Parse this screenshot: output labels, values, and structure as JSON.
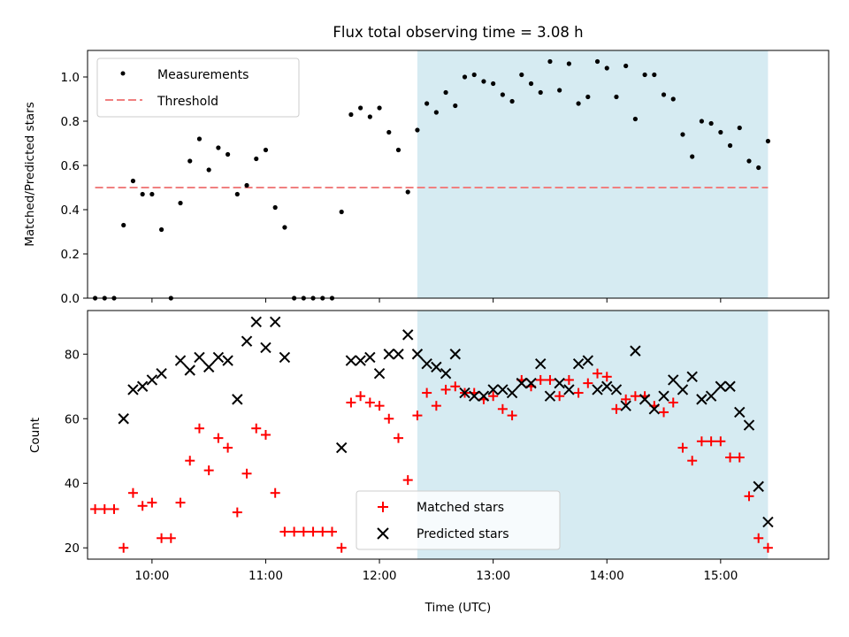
{
  "chart_data": [
    {
      "type": "scatter",
      "title": "Flux total observing time = 3.08 h",
      "ylabel": "Matched/Predicted stars",
      "xlabel": "",
      "xlim": [
        "09:26",
        "15:57"
      ],
      "ylim": [
        0,
        1.12
      ],
      "yticks": [
        "0.0",
        "0.2",
        "0.4",
        "0.6",
        "0.8",
        "1.0"
      ],
      "legend_position": "top-left",
      "shaded_interval": {
        "x": [
          "12:20",
          "15:25"
        ],
        "color": "#add8e6"
      },
      "threshold": {
        "name": "Threshold",
        "y": 0.5,
        "x": [
          "09:30",
          "15:25"
        ],
        "color": "#f08080",
        "style": "dashed"
      },
      "series": [
        {
          "name": "Measurements",
          "color": "#000000",
          "marker": "dot",
          "points": [
            [
              "09:30",
              0.0
            ],
            [
              "09:35",
              0.0
            ],
            [
              "09:40",
              0.0
            ],
            [
              "09:45",
              0.33
            ],
            [
              "09:50",
              0.53
            ],
            [
              "09:55",
              0.47
            ],
            [
              "10:00",
              0.47
            ],
            [
              "10:05",
              0.31
            ],
            [
              "10:10",
              0.0
            ],
            [
              "10:15",
              0.43
            ],
            [
              "10:20",
              0.62
            ],
            [
              "10:25",
              0.72
            ],
            [
              "10:30",
              0.58
            ],
            [
              "10:35",
              0.68
            ],
            [
              "10:40",
              0.65
            ],
            [
              "10:45",
              0.47
            ],
            [
              "10:50",
              0.51
            ],
            [
              "10:55",
              0.63
            ],
            [
              "11:00",
              0.67
            ],
            [
              "11:05",
              0.41
            ],
            [
              "11:10",
              0.32
            ],
            [
              "11:15",
              0.0
            ],
            [
              "11:20",
              0.0
            ],
            [
              "11:25",
              0.0
            ],
            [
              "11:30",
              0.0
            ],
            [
              "11:35",
              0.0
            ],
            [
              "11:40",
              0.39
            ],
            [
              "11:45",
              0.83
            ],
            [
              "11:50",
              0.86
            ],
            [
              "11:55",
              0.82
            ],
            [
              "12:00",
              0.86
            ],
            [
              "12:05",
              0.75
            ],
            [
              "12:10",
              0.67
            ],
            [
              "12:15",
              0.48
            ],
            [
              "12:20",
              0.76
            ],
            [
              "12:25",
              0.88
            ],
            [
              "12:30",
              0.84
            ],
            [
              "12:35",
              0.93
            ],
            [
              "12:40",
              0.87
            ],
            [
              "12:45",
              1.0
            ],
            [
              "12:50",
              1.01
            ],
            [
              "12:55",
              0.98
            ],
            [
              "13:00",
              0.97
            ],
            [
              "13:05",
              0.92
            ],
            [
              "13:10",
              0.89
            ],
            [
              "13:15",
              1.01
            ],
            [
              "13:20",
              0.97
            ],
            [
              "13:25",
              0.93
            ],
            [
              "13:30",
              1.07
            ],
            [
              "13:35",
              0.94
            ],
            [
              "13:40",
              1.06
            ],
            [
              "13:45",
              0.88
            ],
            [
              "13:50",
              0.91
            ],
            [
              "13:55",
              1.07
            ],
            [
              "14:00",
              1.04
            ],
            [
              "14:05",
              0.91
            ],
            [
              "14:10",
              1.05
            ],
            [
              "14:15",
              0.81
            ],
            [
              "14:20",
              1.01
            ],
            [
              "14:25",
              1.01
            ],
            [
              "14:30",
              0.92
            ],
            [
              "14:35",
              0.9
            ],
            [
              "14:40",
              0.74
            ],
            [
              "14:45",
              0.64
            ],
            [
              "14:50",
              0.8
            ],
            [
              "14:55",
              0.79
            ],
            [
              "15:00",
              0.75
            ],
            [
              "15:05",
              0.69
            ],
            [
              "15:10",
              0.77
            ],
            [
              "15:15",
              0.62
            ],
            [
              "15:20",
              0.59
            ],
            [
              "15:25",
              0.71
            ]
          ]
        }
      ]
    },
    {
      "type": "scatter",
      "title": "",
      "xlabel": "Time (UTC)",
      "ylabel": "Count",
      "xlim": [
        "09:26",
        "15:57"
      ],
      "ylim": [
        16.5,
        93.5
      ],
      "xticks": [
        "10:00",
        "11:00",
        "12:00",
        "13:00",
        "14:00",
        "15:00"
      ],
      "yticks": [
        "20",
        "40",
        "60",
        "80"
      ],
      "legend_position": "bottom-center",
      "shaded_interval": {
        "x": [
          "12:20",
          "15:25"
        ],
        "color": "#add8e6"
      },
      "series": [
        {
          "name": "Matched stars",
          "color": "#ff0000",
          "marker": "plus",
          "points": [
            [
              "09:30",
              32
            ],
            [
              "09:35",
              32
            ],
            [
              "09:40",
              32
            ],
            [
              "09:45",
              20
            ],
            [
              "09:50",
              37
            ],
            [
              "09:55",
              33
            ],
            [
              "10:00",
              34
            ],
            [
              "10:05",
              23
            ],
            [
              "10:10",
              23
            ],
            [
              "10:15",
              34
            ],
            [
              "10:20",
              47
            ],
            [
              "10:25",
              57
            ],
            [
              "10:30",
              44
            ],
            [
              "10:35",
              54
            ],
            [
              "10:40",
              51
            ],
            [
              "10:45",
              31
            ],
            [
              "10:50",
              43
            ],
            [
              "10:55",
              57
            ],
            [
              "11:00",
              55
            ],
            [
              "11:05",
              37
            ],
            [
              "11:10",
              25
            ],
            [
              "11:15",
              25
            ],
            [
              "11:20",
              25
            ],
            [
              "11:25",
              25
            ],
            [
              "11:30",
              25
            ],
            [
              "11:35",
              25
            ],
            [
              "11:40",
              20
            ],
            [
              "11:45",
              65
            ],
            [
              "11:50",
              67
            ],
            [
              "11:55",
              65
            ],
            [
              "12:00",
              64
            ],
            [
              "12:05",
              60
            ],
            [
              "12:10",
              54
            ],
            [
              "12:15",
              41
            ],
            [
              "12:20",
              61
            ],
            [
              "12:25",
              68
            ],
            [
              "12:30",
              64
            ],
            [
              "12:35",
              69
            ],
            [
              "12:40",
              70
            ],
            [
              "12:45",
              68
            ],
            [
              "12:50",
              68
            ],
            [
              "12:55",
              66
            ],
            [
              "13:00",
              67
            ],
            [
              "13:05",
              63
            ],
            [
              "13:10",
              61
            ],
            [
              "13:15",
              72
            ],
            [
              "13:20",
              70
            ],
            [
              "13:25",
              72
            ],
            [
              "13:30",
              72
            ],
            [
              "13:35",
              67
            ],
            [
              "13:40",
              72
            ],
            [
              "13:45",
              68
            ],
            [
              "13:50",
              71
            ],
            [
              "13:55",
              74
            ],
            [
              "14:00",
              73
            ],
            [
              "14:05",
              63
            ],
            [
              "14:10",
              66
            ],
            [
              "14:15",
              67
            ],
            [
              "14:20",
              67
            ],
            [
              "14:25",
              64
            ],
            [
              "14:30",
              62
            ],
            [
              "14:35",
              65
            ],
            [
              "14:40",
              51
            ],
            [
              "14:45",
              47
            ],
            [
              "14:50",
              53
            ],
            [
              "14:55",
              53
            ],
            [
              "15:00",
              53
            ],
            [
              "15:05",
              48
            ],
            [
              "15:10",
              48
            ],
            [
              "15:15",
              36
            ],
            [
              "15:20",
              23
            ],
            [
              "15:25",
              20
            ]
          ]
        },
        {
          "name": "Predicted stars",
          "color": "#000000",
          "marker": "x",
          "points": [
            [
              "09:45",
              60
            ],
            [
              "09:50",
              69
            ],
            [
              "09:55",
              70
            ],
            [
              "10:00",
              72
            ],
            [
              "10:05",
              74
            ],
            [
              "10:15",
              78
            ],
            [
              "10:20",
              75
            ],
            [
              "10:25",
              79
            ],
            [
              "10:30",
              76
            ],
            [
              "10:35",
              79
            ],
            [
              "10:40",
              78
            ],
            [
              "10:45",
              66
            ],
            [
              "10:50",
              84
            ],
            [
              "10:55",
              90
            ],
            [
              "11:00",
              82
            ],
            [
              "11:05",
              90
            ],
            [
              "11:10",
              79
            ],
            [
              "11:40",
              51
            ],
            [
              "11:45",
              78
            ],
            [
              "11:50",
              78
            ],
            [
              "11:55",
              79
            ],
            [
              "12:00",
              74
            ],
            [
              "12:05",
              80
            ],
            [
              "12:10",
              80
            ],
            [
              "12:15",
              86
            ],
            [
              "12:20",
              80
            ],
            [
              "12:25",
              77
            ],
            [
              "12:30",
              76
            ],
            [
              "12:35",
              74
            ],
            [
              "12:40",
              80
            ],
            [
              "12:45",
              68
            ],
            [
              "12:50",
              67
            ],
            [
              "12:55",
              67
            ],
            [
              "13:00",
              69
            ],
            [
              "13:05",
              69
            ],
            [
              "13:10",
              68
            ],
            [
              "13:15",
              71
            ],
            [
              "13:20",
              71
            ],
            [
              "13:25",
              77
            ],
            [
              "13:30",
              67
            ],
            [
              "13:35",
              71
            ],
            [
              "13:40",
              69
            ],
            [
              "13:45",
              77
            ],
            [
              "13:50",
              78
            ],
            [
              "13:55",
              69
            ],
            [
              "14:00",
              70
            ],
            [
              "14:05",
              69
            ],
            [
              "14:10",
              64
            ],
            [
              "14:15",
              81
            ],
            [
              "14:20",
              66
            ],
            [
              "14:25",
              63
            ],
            [
              "14:30",
              67
            ],
            [
              "14:35",
              72
            ],
            [
              "14:40",
              69
            ],
            [
              "14:45",
              73
            ],
            [
              "14:50",
              66
            ],
            [
              "14:55",
              67
            ],
            [
              "15:00",
              70
            ],
            [
              "15:05",
              70
            ],
            [
              "15:10",
              62
            ],
            [
              "15:15",
              58
            ],
            [
              "15:20",
              39
            ],
            [
              "15:25",
              28
            ]
          ]
        }
      ]
    }
  ]
}
